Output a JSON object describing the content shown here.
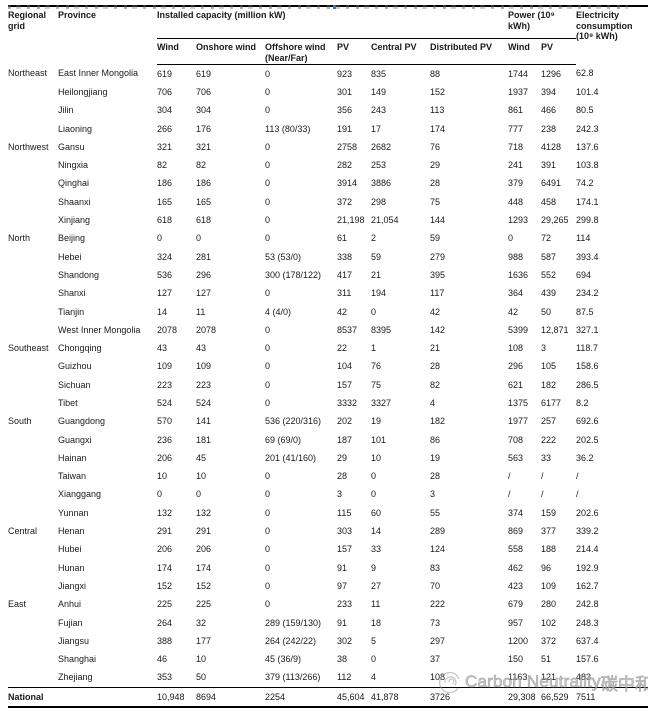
{
  "watermark": {
    "logo_icon": "carbon-neutrality-swirl-logo",
    "text_en": "Carbon Neutrality",
    "text_zh": "碳中和",
    "color": "#919191"
  },
  "table": {
    "header": {
      "regional_grid": "Regional grid",
      "province": "Province",
      "installed_capacity_group": "Installed capacity (million kW)",
      "power_group": "Power (10⁹ kWh)",
      "electricity_consumption": "Electricity consumption (10⁹ kWh)",
      "subcols": [
        "Wind",
        "Onshore wind",
        "Offshore wind (Near/Far)",
        "PV",
        "Central PV",
        "Distributed PV",
        "Wind",
        "PV"
      ]
    },
    "rows": [
      {
        "region": "Northeast",
        "province": "East Inner Mongolia",
        "cells": [
          "619",
          "619",
          "0",
          "923",
          "835",
          "88",
          "1744",
          "1296",
          "62.8"
        ]
      },
      {
        "region": "",
        "province": "Heilongjiang",
        "cells": [
          "706",
          "706",
          "0",
          "301",
          "149",
          "152",
          "1937",
          "394",
          "101.4"
        ]
      },
      {
        "region": "",
        "province": "Jilin",
        "cells": [
          "304",
          "304",
          "0",
          "356",
          "243",
          "113",
          "861",
          "466",
          "80.5"
        ]
      },
      {
        "region": "",
        "province": "Liaoning",
        "cells": [
          "266",
          "176",
          "113 (80/33)",
          "191",
          "17",
          "174",
          "777",
          "238",
          "242.3"
        ]
      },
      {
        "region": "Northwest",
        "province": "Gansu",
        "cells": [
          "321",
          "321",
          "0",
          "2758",
          "2682",
          "76",
          "718",
          "4128",
          "137.6"
        ]
      },
      {
        "region": "",
        "province": "Ningxia",
        "cells": [
          "82",
          "82",
          "0",
          "282",
          "253",
          "29",
          "241",
          "391",
          "103.8"
        ]
      },
      {
        "region": "",
        "province": "Qinghai",
        "cells": [
          "186",
          "186",
          "0",
          "3914",
          "3886",
          "28",
          "379",
          "6491",
          "74.2"
        ]
      },
      {
        "region": "",
        "province": "Shaanxi",
        "cells": [
          "165",
          "165",
          "0",
          "372",
          "298",
          "75",
          "448",
          "458",
          "174.1"
        ]
      },
      {
        "region": "",
        "province": "Xinjiang",
        "cells": [
          "618",
          "618",
          "0",
          "21,198",
          "21,054",
          "144",
          "1293",
          "29,265",
          "299.8"
        ]
      },
      {
        "region": "North",
        "province": "Beijing",
        "cells": [
          "0",
          "0",
          "0",
          "61",
          "2",
          "59",
          "0",
          "72",
          "114"
        ]
      },
      {
        "region": "",
        "province": "Hebei",
        "cells": [
          "324",
          "281",
          "53 (53/0)",
          "338",
          "59",
          "279",
          "988",
          "587",
          "393.4"
        ]
      },
      {
        "region": "",
        "province": "Shandong",
        "cells": [
          "536",
          "296",
          "300 (178/122)",
          "417",
          "21",
          "395",
          "1636",
          "552",
          "694"
        ]
      },
      {
        "region": "",
        "province": "Shanxi",
        "cells": [
          "127",
          "127",
          "0",
          "311",
          "194",
          "117",
          "364",
          "439",
          "234.2"
        ]
      },
      {
        "region": "",
        "province": "Tianjin",
        "cells": [
          "14",
          "11",
          "4 (4/0)",
          "42",
          "0",
          "42",
          "42",
          "50",
          "87.5"
        ]
      },
      {
        "region": "",
        "province": "West Inner Mongolia",
        "cells": [
          "2078",
          "2078",
          "0",
          "8537",
          "8395",
          "142",
          "5399",
          "12,871",
          "327.1"
        ]
      },
      {
        "region": "Southeast",
        "province": "Chongqing",
        "cells": [
          "43",
          "43",
          "0",
          "22",
          "1",
          "21",
          "108",
          "3",
          "118.7"
        ]
      },
      {
        "region": "",
        "province": "Guizhou",
        "cells": [
          "109",
          "109",
          "0",
          "104",
          "76",
          "28",
          "296",
          "105",
          "158.6"
        ]
      },
      {
        "region": "",
        "province": "Sichuan",
        "cells": [
          "223",
          "223",
          "0",
          "157",
          "75",
          "82",
          "621",
          "182",
          "286.5"
        ]
      },
      {
        "region": "",
        "province": "Tibet",
        "cells": [
          "524",
          "524",
          "0",
          "3332",
          "3327",
          "4",
          "1375",
          "6177",
          "8.2"
        ]
      },
      {
        "region": "South",
        "province": "Guangdong",
        "cells": [
          "570",
          "141",
          "536 (220/316)",
          "202",
          "19",
          "182",
          "1977",
          "257",
          "692.6"
        ]
      },
      {
        "region": "",
        "province": "Guangxi",
        "cells": [
          "236",
          "181",
          "69 (69/0)",
          "187",
          "101",
          "86",
          "708",
          "222",
          "202.5"
        ]
      },
      {
        "region": "",
        "province": "Hainan",
        "cells": [
          "206",
          "45",
          "201 (41/160)",
          "29",
          "10",
          "19",
          "563",
          "33",
          "36.2"
        ]
      },
      {
        "region": "",
        "province": "Taiwan",
        "cells": [
          "10",
          "10",
          "0",
          "28",
          "0",
          "28",
          "/",
          "/",
          "/"
        ]
      },
      {
        "region": "",
        "province": "Xianggang",
        "cells": [
          "0",
          "0",
          "0",
          "3",
          "0",
          "3",
          "/",
          "/",
          "/"
        ]
      },
      {
        "region": "",
        "province": "Yunnan",
        "cells": [
          "132",
          "132",
          "0",
          "115",
          "60",
          "55",
          "374",
          "159",
          "202.6"
        ]
      },
      {
        "region": "Central",
        "province": "Henan",
        "cells": [
          "291",
          "291",
          "0",
          "303",
          "14",
          "289",
          "869",
          "377",
          "339.2"
        ]
      },
      {
        "region": "",
        "province": "Hubei",
        "cells": [
          "206",
          "206",
          "0",
          "157",
          "33",
          "124",
          "558",
          "188",
          "214.4"
        ]
      },
      {
        "region": "",
        "province": "Hunan",
        "cells": [
          "174",
          "174",
          "0",
          "91",
          "9",
          "83",
          "462",
          "96",
          "192.9"
        ]
      },
      {
        "region": "",
        "province": "Jiangxi",
        "cells": [
          "152",
          "152",
          "0",
          "97",
          "27",
          "70",
          "423",
          "109",
          "162.7"
        ]
      },
      {
        "region": "East",
        "province": "Anhui",
        "cells": [
          "225",
          "225",
          "0",
          "233",
          "11",
          "222",
          "679",
          "280",
          "242.8"
        ]
      },
      {
        "region": "",
        "province": "Fujian",
        "cells": [
          "264",
          "32",
          "289 (159/130)",
          "91",
          "18",
          "73",
          "957",
          "102",
          "248.3"
        ]
      },
      {
        "region": "",
        "province": "Jiangsu",
        "cells": [
          "388",
          "177",
          "264 (242/22)",
          "302",
          "5",
          "297",
          "1200",
          "372",
          "637.4"
        ]
      },
      {
        "region": "",
        "province": "Shanghai",
        "cells": [
          "46",
          "10",
          "45 (36/9)",
          "38",
          "0",
          "37",
          "150",
          "51",
          "157.6"
        ]
      },
      {
        "region": "",
        "province": "Zhejiang",
        "cells": [
          "353",
          "50",
          "379 (113/266)",
          "112",
          "4",
          "108",
          "1163",
          "121",
          "483"
        ]
      }
    ],
    "national": {
      "label": "National",
      "cells": [
        "10,948",
        "8694",
        "2254",
        "45,604",
        "41,878",
        "3726",
        "29,308",
        "66,529",
        "7511"
      ]
    }
  }
}
